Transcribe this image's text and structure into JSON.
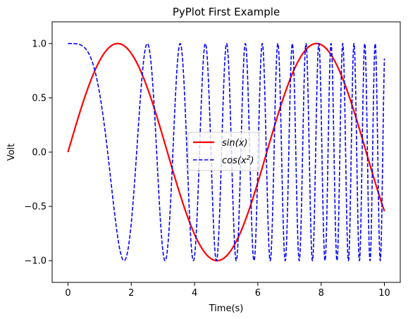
{
  "chart_data": {
    "type": "line",
    "title": "PyPlot First Example",
    "xlabel": "Time(s)",
    "ylabel": "Volt",
    "xlim": [
      -0.5,
      10.5
    ],
    "ylim": [
      -1.2,
      1.2
    ],
    "grid": false,
    "legend_placement": "center",
    "x_ticks": [
      0,
      2,
      4,
      6,
      8,
      10
    ],
    "x_tick_labels": [
      "0",
      "2",
      "4",
      "6",
      "8",
      "10"
    ],
    "y_ticks": [
      -1.0,
      -0.5,
      0.0,
      0.5,
      1.0
    ],
    "y_tick_labels": [
      "−1.0",
      "−0.5",
      "0.0",
      "0.5",
      "1.0"
    ],
    "x_range": [
      0,
      10
    ],
    "series": [
      {
        "name_text": "sin(x)",
        "function": "sin(x)",
        "color": "#ff0000",
        "style": "solid",
        "stroke": "thick",
        "key_points": [
          [
            0,
            0.0
          ],
          [
            1.571,
            1.0
          ],
          [
            4.712,
            -1.0
          ],
          [
            7.854,
            1.0
          ],
          [
            10,
            -0.544
          ]
        ]
      },
      {
        "name_text": "cos(x",
        "name_sup": "2",
        "name_close": ")",
        "function": "cos(x^2)",
        "color": "#0000ff",
        "style": "dashed",
        "stroke": "medium",
        "key_points": [
          [
            0,
            1.0
          ],
          [
            1.772,
            -1.0
          ],
          [
            2.507,
            1.0
          ],
          [
            3.07,
            -1.0
          ],
          [
            10,
            0.862
          ]
        ]
      }
    ]
  }
}
